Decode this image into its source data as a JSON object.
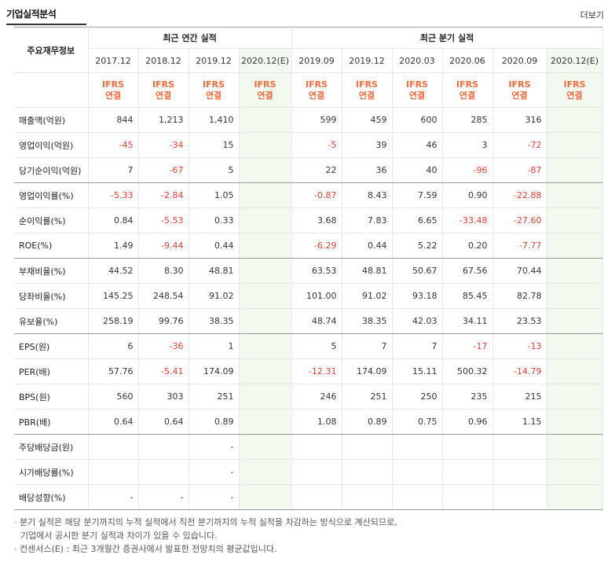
{
  "header": {
    "title": "기업실적분석",
    "more": "더보기"
  },
  "table": {
    "row_header_label": "주요재무정보",
    "annual_title": "최근 연간 실적",
    "quarter_title": "최근 분기 실적",
    "annual_periods": [
      "2017.12",
      "2018.12",
      "2019.12",
      "2020.12(E)"
    ],
    "quarter_periods": [
      "2019.09",
      "2019.12",
      "2020.03",
      "2020.06",
      "2020.09",
      "2020.12(E)"
    ],
    "ifrs_label": "IFRS",
    "ifrs_sub": "연결",
    "rows": [
      {
        "label": "매출액(억원)",
        "values": [
          "844",
          "1,213",
          "1,410",
          "",
          "599",
          "459",
          "600",
          "285",
          "316",
          ""
        ]
      },
      {
        "label": "영업이익(억원)",
        "values": [
          "-45",
          "-34",
          "15",
          "",
          "-5",
          "39",
          "46",
          "3",
          "-72",
          ""
        ]
      },
      {
        "label": "당기순이익(억원)",
        "values": [
          "7",
          "-67",
          "5",
          "",
          "22",
          "36",
          "40",
          "-96",
          "-87",
          ""
        ]
      },
      {
        "label": "영업이익률(%)",
        "values": [
          "-5.33",
          "-2.84",
          "1.05",
          "",
          "-0.87",
          "8.43",
          "7.59",
          "0.90",
          "-22.88",
          ""
        ]
      },
      {
        "label": "순이익률(%)",
        "values": [
          "0.84",
          "-5.53",
          "0.33",
          "",
          "3.68",
          "7.83",
          "6.65",
          "-33.48",
          "-27.60",
          ""
        ]
      },
      {
        "label": "ROE(%)",
        "values": [
          "1.49",
          "-9.44",
          "0.44",
          "",
          "-6.29",
          "0.44",
          "5.22",
          "0.20",
          "-7.77",
          ""
        ]
      },
      {
        "label": "부채비율(%)",
        "values": [
          "44.52",
          "8.30",
          "48.81",
          "",
          "63.53",
          "48.81",
          "50.67",
          "67.56",
          "70.44",
          ""
        ]
      },
      {
        "label": "당좌비율(%)",
        "values": [
          "145.25",
          "248.54",
          "91.02",
          "",
          "101.00",
          "91.02",
          "93.18",
          "85.45",
          "82.78",
          ""
        ]
      },
      {
        "label": "유보율(%)",
        "values": [
          "258.19",
          "99.76",
          "38.35",
          "",
          "48.74",
          "38.35",
          "42.03",
          "34.11",
          "23.53",
          ""
        ]
      },
      {
        "label": "EPS(원)",
        "values": [
          "6",
          "-36",
          "1",
          "",
          "5",
          "7",
          "7",
          "-17",
          "-13",
          ""
        ]
      },
      {
        "label": "PER(배)",
        "values": [
          "57.76",
          "-5.41",
          "174.09",
          "",
          "-12.31",
          "174.09",
          "15.11",
          "500.32",
          "-14.79",
          ""
        ]
      },
      {
        "label": "BPS(원)",
        "values": [
          "560",
          "303",
          "251",
          "",
          "246",
          "251",
          "250",
          "235",
          "215",
          ""
        ]
      },
      {
        "label": "PBR(배)",
        "values": [
          "0.64",
          "0.64",
          "0.89",
          "",
          "1.08",
          "0.89",
          "0.75",
          "0.96",
          "1.15",
          ""
        ]
      },
      {
        "label": "주당배당금(원)",
        "values": [
          "",
          "",
          "-",
          "",
          "",
          "",
          "",
          "",
          "",
          ""
        ]
      },
      {
        "label": "시가배당률(%)",
        "values": [
          "",
          "",
          "-",
          "",
          "",
          "",
          "",
          "",
          "",
          ""
        ]
      },
      {
        "label": "배당성향(%)",
        "values": [
          "-",
          "-",
          "-",
          "",
          "",
          "",
          "",
          "",
          "",
          ""
        ]
      }
    ],
    "group_ends": [
      2,
      5,
      8,
      12,
      15
    ]
  },
  "notes": [
    "분기 실적은 해당 분기까지의 누적 실적에서 직전 분기까지의 누적 실적을 차감하는 방식으로 계산되므로,",
    "기업에서 공시한 분기 실적과 차이가 있을 수 있습니다.",
    "컨센서스(E) : 최근 3개월간 증권사에서 발표한 전망치의 평균값입니다."
  ],
  "colors": {
    "negative": "#e0412e",
    "ifrs": "#f26a3a",
    "estimate_bg": "#f2faef"
  }
}
